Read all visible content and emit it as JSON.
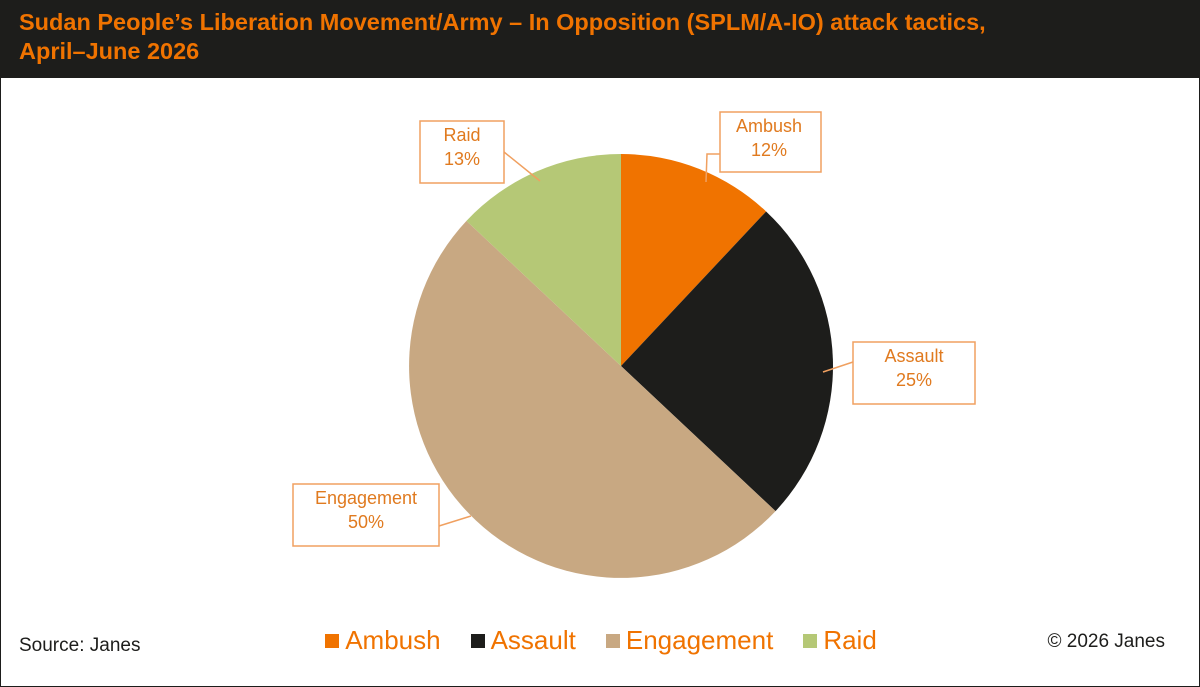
{
  "header": {
    "title_line1": "Sudan People’s Liberation Movement/Army – In Opposition (SPLM/A-IO) attack tactics,",
    "title_line2": "April–June 2026"
  },
  "footer": {
    "source": "Source: Janes",
    "copyright": "© 2026 Janes"
  },
  "colors": {
    "accent": "#f07300",
    "header_bg": "#1d1d1b",
    "label_text": "#e07a1f",
    "callout_border": "#f0a060"
  },
  "chart_data": {
    "type": "pie",
    "title": "Sudan People’s Liberation Movement/Army – In Opposition (SPLM/A-IO) attack tactics, April–June 2026",
    "legend_position": "bottom",
    "slices": [
      {
        "label": "Ambush",
        "value": 12,
        "value_label": "12%",
        "color": "#f07300"
      },
      {
        "label": "Assault",
        "value": 25,
        "value_label": "25%",
        "color": "#1d1d1b"
      },
      {
        "label": "Engagement",
        "value": 50,
        "value_label": "50%",
        "color": "#c8a882"
      },
      {
        "label": "Raid",
        "value": 13,
        "value_label": "13%",
        "color": "#b5c876"
      }
    ]
  }
}
